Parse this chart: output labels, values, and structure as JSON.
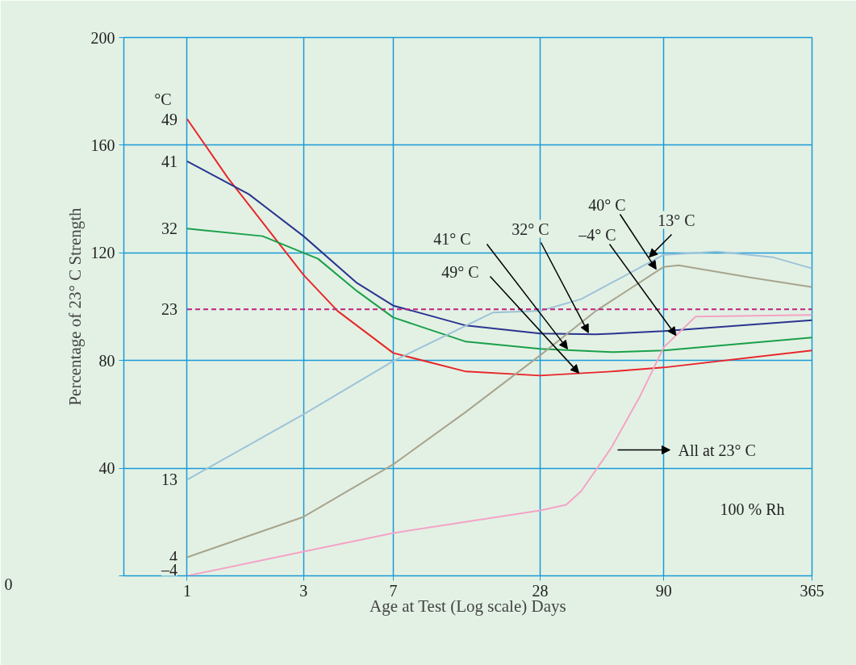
{
  "chart_data": {
    "type": "line",
    "xlabel": "Age at Test (Log scale) Days",
    "ylabel": "Percentage of 23° C Strength",
    "log": "x",
    "xlim": [
      0.55,
      365
    ],
    "ylim": [
      0,
      200
    ],
    "xticks": [
      1,
      3,
      7,
      28,
      90,
      365
    ],
    "yticks": [
      {
        "value": 0,
        "label": null
      },
      40,
      80,
      120,
      160,
      200
    ],
    "grid": true,
    "marker": "none",
    "line_style": "solid",
    "series": [
      {
        "name": "49",
        "color": "#e8262a",
        "x": [
          1,
          1.47,
          3,
          4.14,
          7,
          13.9,
          28,
          54.7,
          90,
          365
        ],
        "values": [
          169.7,
          147.8,
          111.8,
          98.4,
          82.8,
          75.9,
          74.4,
          75.9,
          77.4,
          83.7
        ]
      },
      {
        "name": "41",
        "color": "#2b3590",
        "x": [
          1,
          1.79,
          3,
          4.97,
          7,
          13.9,
          28,
          47.4,
          90,
          365
        ],
        "values": [
          154,
          141.8,
          126.2,
          108.8,
          100.4,
          93,
          90,
          89.7,
          90.9,
          95
        ]
      },
      {
        "name": "32",
        "color": "#1aa04a",
        "x": [
          1,
          2.04,
          3.44,
          4.97,
          7,
          13.9,
          28,
          54.7,
          90,
          365
        ],
        "values": [
          129,
          126.2,
          117.8,
          105.8,
          96,
          87,
          84.3,
          83.1,
          83.7,
          88.5
        ]
      },
      {
        "name": "13",
        "color": "#9cc3d8",
        "x": [
          1,
          3,
          7,
          17.9,
          28,
          41.3,
          90,
          149.2,
          251.5,
          365
        ],
        "values": [
          35.7,
          60,
          79.8,
          97.8,
          98.4,
          102.8,
          119.3,
          120.5,
          118.4,
          114.2
        ]
      },
      {
        "name": "4",
        "color": "#a8a48e",
        "x": [
          1,
          3,
          7,
          13.9,
          28,
          47.4,
          90,
          103.7,
          203.2,
          365
        ],
        "values": [
          6.9,
          21.9,
          41.4,
          60.9,
          81.9,
          98.4,
          114.8,
          115.4,
          110.9,
          107.3
        ]
      },
      {
        "name": "–4",
        "color": "#f4a3c6",
        "x": [
          1,
          3,
          7,
          28,
          35.8,
          41.3,
          54.7,
          72.1,
          90,
          121.6,
          365
        ],
        "values": [
          0,
          9,
          15.9,
          24.3,
          26.4,
          31.5,
          47.4,
          66.9,
          84.9,
          96.3,
          96.9
        ]
      },
      {
        "name": "23",
        "color": "#c0227e",
        "line_style": "dashed",
        "x": [
          1,
          365
        ],
        "values": [
          99,
          99
        ]
      }
    ],
    "annotations": [
      "°C",
      {
        "text": "49° C",
        "x": 40.4,
        "y": 75.3
      },
      {
        "text": "41° C",
        "x": 36.3,
        "y": 84.3
      },
      {
        "text": "32° C",
        "x": 44.2,
        "y": 90.3
      },
      {
        "text": "–4° C",
        "x": 101,
        "y": 89.3
      },
      {
        "text": "40° C",
        "x": 83.8,
        "y": 113.9
      },
      {
        "text": "13° C",
        "x": 78.4,
        "y": 118.4
      },
      "All at 23° C",
      "100 % Rh",
      "0"
    ]
  }
}
